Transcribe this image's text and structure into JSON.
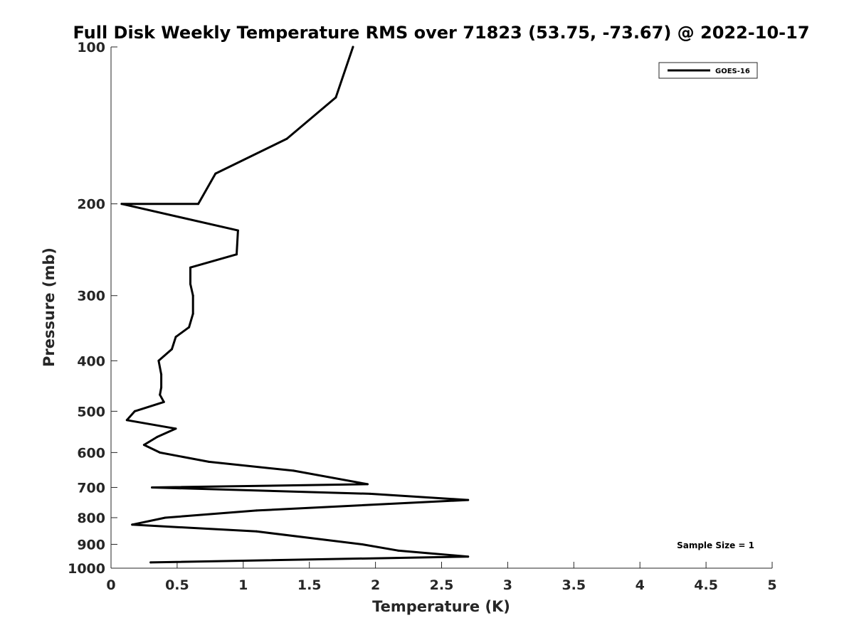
{
  "chart_data": {
    "type": "line",
    "title": "Full Disk Weekly Temperature RMS over 71823 (53.75, -73.67) @ 2022-10-17",
    "xlabel": "Temperature (K)",
    "ylabel": "Pressure (mb)",
    "xlim": [
      0,
      5
    ],
    "ylim": [
      100,
      1000
    ],
    "y_scale": "log",
    "y_reversed": true,
    "x_ticks": [
      0,
      0.5,
      1,
      1.5,
      2,
      2.5,
      3,
      3.5,
      4,
      4.5,
      5
    ],
    "x_tick_labels": [
      "0",
      "0.5",
      "1",
      "1.5",
      "2",
      "2.5",
      "3",
      "3.5",
      "4",
      "4.5",
      "5"
    ],
    "y_ticks": [
      100,
      200,
      300,
      400,
      500,
      600,
      700,
      800,
      900,
      1000
    ],
    "y_tick_labels": [
      "100",
      "200",
      "300",
      "400",
      "500",
      "600",
      "700",
      "800",
      "900",
      "1000"
    ],
    "grid": false,
    "legend_position": "top-right",
    "series": [
      {
        "name": "GOES-16",
        "color": "#000000",
        "points": [
          {
            "temperature": 1.83,
            "pressure": 100
          },
          {
            "temperature": 1.7,
            "pressure": 125
          },
          {
            "temperature": 1.33,
            "pressure": 150
          },
          {
            "temperature": 0.79,
            "pressure": 175
          },
          {
            "temperature": 0.66,
            "pressure": 200
          },
          {
            "temperature": 0.08,
            "pressure": 200
          },
          {
            "temperature": 0.96,
            "pressure": 225
          },
          {
            "temperature": 0.95,
            "pressure": 250
          },
          {
            "temperature": 0.6,
            "pressure": 265
          },
          {
            "temperature": 0.6,
            "pressure": 285
          },
          {
            "temperature": 0.62,
            "pressure": 300
          },
          {
            "temperature": 0.62,
            "pressure": 325
          },
          {
            "temperature": 0.59,
            "pressure": 345
          },
          {
            "temperature": 0.49,
            "pressure": 360
          },
          {
            "temperature": 0.46,
            "pressure": 380
          },
          {
            "temperature": 0.36,
            "pressure": 400
          },
          {
            "temperature": 0.38,
            "pressure": 425
          },
          {
            "temperature": 0.38,
            "pressure": 450
          },
          {
            "temperature": 0.37,
            "pressure": 465
          },
          {
            "temperature": 0.4,
            "pressure": 480
          },
          {
            "temperature": 0.18,
            "pressure": 500
          },
          {
            "temperature": 0.12,
            "pressure": 520
          },
          {
            "temperature": 0.49,
            "pressure": 540
          },
          {
            "temperature": 0.35,
            "pressure": 560
          },
          {
            "temperature": 0.25,
            "pressure": 580
          },
          {
            "temperature": 0.37,
            "pressure": 600
          },
          {
            "temperature": 0.74,
            "pressure": 625
          },
          {
            "temperature": 1.38,
            "pressure": 650
          },
          {
            "temperature": 1.94,
            "pressure": 690
          },
          {
            "temperature": 0.31,
            "pressure": 700
          },
          {
            "temperature": 1.96,
            "pressure": 720
          },
          {
            "temperature": 2.7,
            "pressure": 740
          },
          {
            "temperature": 1.1,
            "pressure": 775
          },
          {
            "temperature": 0.41,
            "pressure": 800
          },
          {
            "temperature": 0.16,
            "pressure": 825
          },
          {
            "temperature": 1.1,
            "pressure": 850
          },
          {
            "temperature": 1.9,
            "pressure": 900
          },
          {
            "temperature": 2.17,
            "pressure": 925
          },
          {
            "temperature": 2.7,
            "pressure": 950
          },
          {
            "temperature": 0.3,
            "pressure": 975
          }
        ]
      }
    ],
    "annotation": "Sample Size = 1"
  }
}
